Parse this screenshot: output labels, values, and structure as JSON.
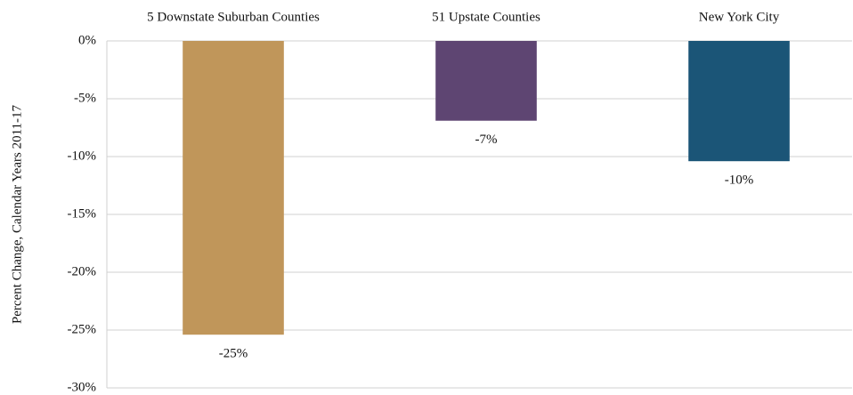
{
  "chart_data": {
    "type": "bar",
    "ylabel": "Percent Change, Calendar Years 2011-17",
    "categories": [
      "5 Downstate Suburban Counties",
      "51 Upstate Counties",
      "New York City"
    ],
    "values": [
      -25.4,
      -6.9,
      -10.4
    ],
    "value_labels": [
      "-25%",
      "-7%",
      "-10%"
    ],
    "colors": [
      "#c0965a",
      "#5e4572",
      "#1b5577"
    ],
    "ylim": [
      -30,
      0
    ],
    "yticks": [
      {
        "value": 0,
        "label": "0%"
      },
      {
        "value": -5,
        "label": "-5%"
      },
      {
        "value": -10,
        "label": "-10%"
      },
      {
        "value": -15,
        "label": "-15%"
      },
      {
        "value": -20,
        "label": "-20%"
      },
      {
        "value": -25,
        "label": "-25%"
      },
      {
        "value": -30,
        "label": "-30%"
      }
    ],
    "grid": true
  }
}
